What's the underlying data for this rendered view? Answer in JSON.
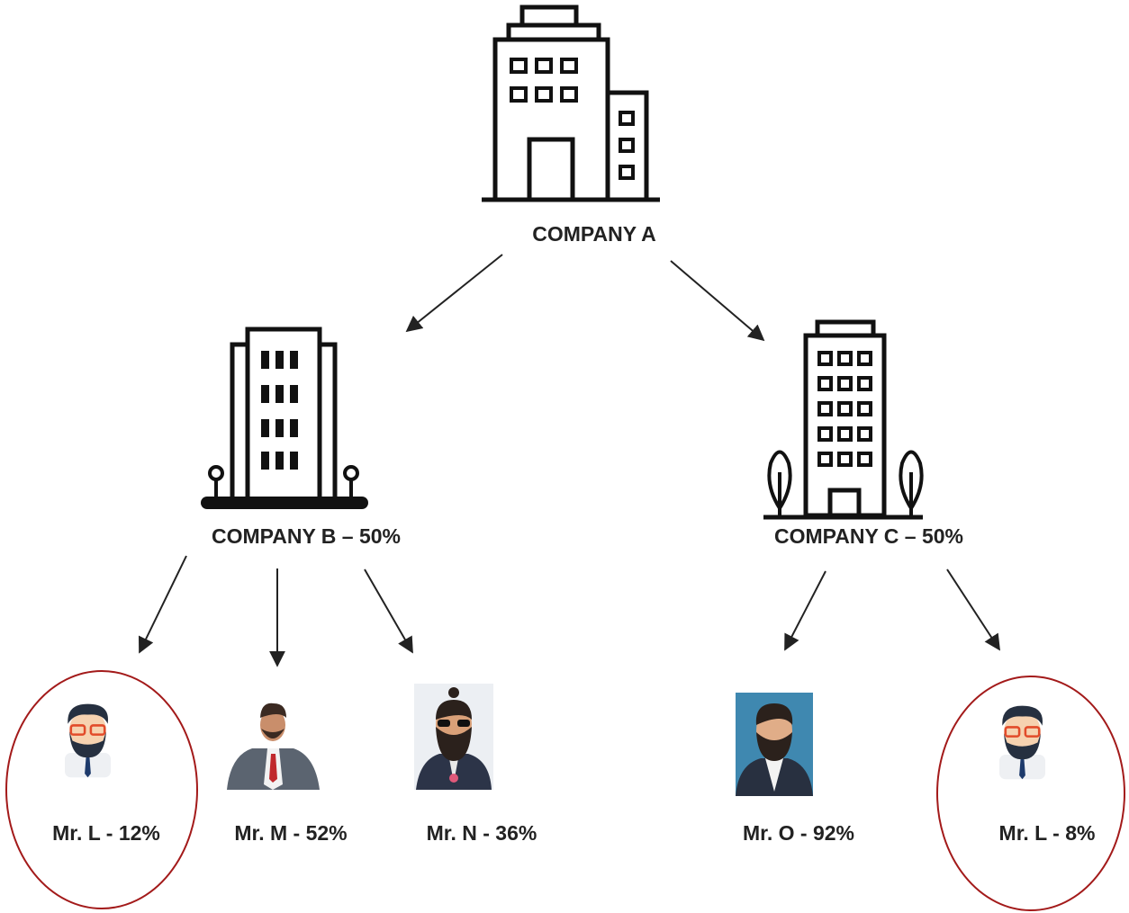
{
  "nodes": [
    {
      "label": "COMPANY A"
    },
    {
      "label": "COMPANY B – 50%"
    },
    {
      "label": "COMPANY C – 50%"
    },
    {
      "label": "Mr. L - 12%"
    },
    {
      "label": "Mr. M - 52%"
    },
    {
      "label": "Mr. N - 36%"
    },
    {
      "label": "Mr. O - 92%"
    },
    {
      "label": "Mr. L - 8%"
    }
  ]
}
